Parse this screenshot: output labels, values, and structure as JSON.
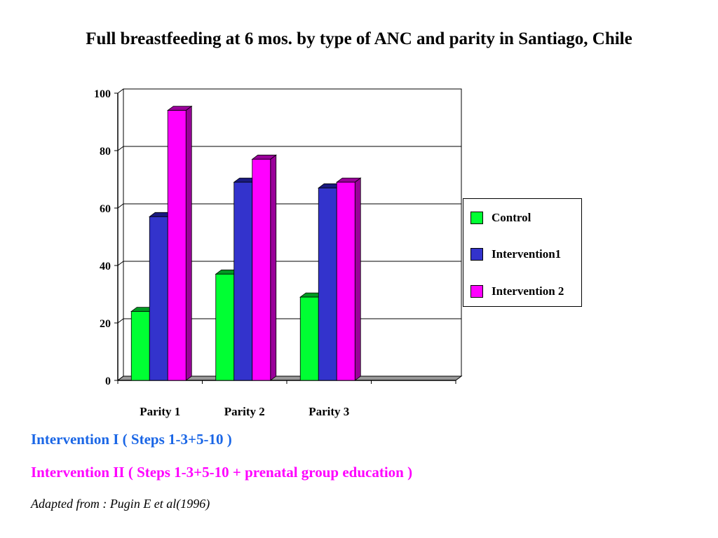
{
  "title": "Full breastfeeding at 6 mos. by type of ANC and parity in Santiago, Chile",
  "chart_data": {
    "type": "bar",
    "title": "Full breastfeeding at 6 mos. by type of ANC and parity in Santiago, Chile",
    "categories": [
      "Parity 1",
      "Parity 2",
      "Parity 3",
      ""
    ],
    "series": [
      {
        "name": "Control",
        "values": [
          24,
          37,
          29,
          null
        ],
        "color": "#00ff33",
        "side_color": "#009922"
      },
      {
        "name": "Intervention1",
        "values": [
          57,
          69,
          67,
          null
        ],
        "color": "#3333cc",
        "side_color": "#1a1a80"
      },
      {
        "name": "Intervention 2",
        "values": [
          94,
          77,
          69,
          null
        ],
        "color": "#ff00ff",
        "side_color": "#990099"
      }
    ],
    "xlabel": "",
    "ylabel": "",
    "ylim": [
      0,
      100
    ],
    "yticks": [
      "0",
      "20",
      "40",
      "60",
      "80",
      "100"
    ],
    "grid": true,
    "legend_position": "right",
    "style": "3d-bar"
  },
  "legend": {
    "items": [
      {
        "label": "Control",
        "color": "#00ff33"
      },
      {
        "label": "Intervention1",
        "color": "#3333cc"
      },
      {
        "label": "Intervention 2",
        "color": "#ff00ff"
      }
    ]
  },
  "footer": {
    "line1": "Intervention I ( Steps 1-3+5-10 )",
    "line2": "Intervention II ( Steps 1-3+5-10 + prenatal group education )",
    "line3": "Adapted from : Pugin E et al(1996)"
  }
}
